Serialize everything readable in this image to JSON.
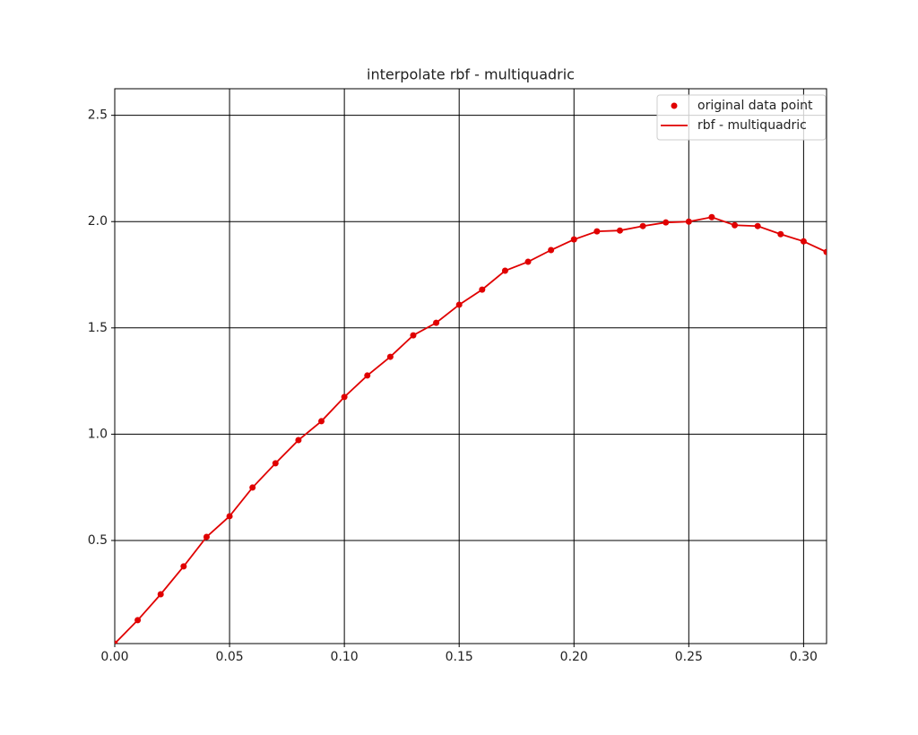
{
  "chart_data": {
    "type": "line",
    "title": "interpolate rbf - multiquadric",
    "x": [
      0.0,
      0.01,
      0.02,
      0.03,
      0.04,
      0.05,
      0.06,
      0.07,
      0.08,
      0.09,
      0.1,
      0.11,
      0.12,
      0.13,
      0.14,
      0.15,
      0.16,
      0.17,
      0.18,
      0.19,
      0.2,
      0.21,
      0.22,
      0.23,
      0.24,
      0.25,
      0.26,
      0.27,
      0.28,
      0.29,
      0.3,
      0.31
    ],
    "series": [
      {
        "name": "original data point",
        "type": "scatter",
        "color": "#e00000",
        "values": [
          0.015,
          0.125,
          0.247,
          0.378,
          0.517,
          0.614,
          0.749,
          0.863,
          0.972,
          1.061,
          1.175,
          1.276,
          1.364,
          1.465,
          1.524,
          1.609,
          1.68,
          1.769,
          1.811,
          1.866,
          1.916,
          1.954,
          1.958,
          1.979,
          1.996,
          2.0,
          2.021,
          1.983,
          1.979,
          1.941,
          1.907,
          1.857
        ]
      },
      {
        "name": "rbf - multiquadric",
        "type": "line",
        "color": "#e00000",
        "values": [
          0.015,
          0.125,
          0.247,
          0.378,
          0.517,
          0.614,
          0.749,
          0.863,
          0.972,
          1.061,
          1.175,
          1.276,
          1.364,
          1.465,
          1.524,
          1.609,
          1.68,
          1.769,
          1.811,
          1.866,
          1.916,
          1.954,
          1.958,
          1.979,
          1.996,
          2.0,
          2.021,
          1.983,
          1.979,
          1.941,
          1.907,
          1.857
        ]
      }
    ],
    "xlim": [
      0,
      0.31
    ],
    "ylim": [
      0.015,
      2.625
    ],
    "xticks": [
      {
        "value": 0,
        "label": "0.00"
      },
      0.05,
      {
        "value": 0.1,
        "label": "0.10"
      },
      0.15,
      {
        "value": 0.2,
        "label": "0.20"
      },
      0.25,
      {
        "value": 0.3,
        "label": "0.30"
      }
    ],
    "yticks": [
      0.5,
      {
        "value": 1,
        "label": "1.0"
      },
      1.5,
      {
        "value": 2,
        "label": "2.0"
      },
      2.5
    ],
    "grid": true,
    "legend": "upper right"
  }
}
